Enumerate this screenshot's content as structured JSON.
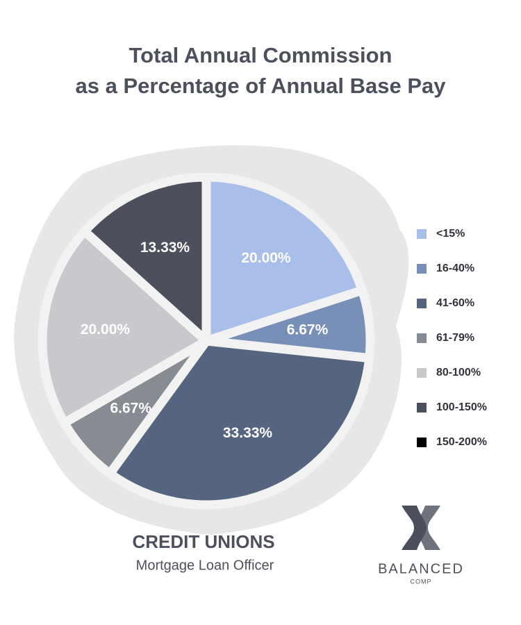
{
  "chart_data": {
    "type": "pie",
    "title": [
      "Total Annual Commission",
      "as a Percentage of Annual Base Pay"
    ],
    "subtitle": [
      "CREDIT UNIONS",
      "Mortgage Loan Officer"
    ],
    "categories": [
      "<15%",
      "16-40%",
      "41-60%",
      "61-79%",
      "80-100%",
      "100-150%",
      "150-200%"
    ],
    "values": [
      20.0,
      6.67,
      33.33,
      6.67,
      20.0,
      13.33,
      0
    ],
    "value_labels": [
      "20.00%",
      "6.67%",
      "33.33%",
      "6.67%",
      "20.00%",
      "13.33%",
      null
    ],
    "colors": [
      "#a9bfe9",
      "#7890b8",
      "#56657f",
      "#878c93",
      "#c8c9cc",
      "#4b505c",
      "#000000"
    ],
    "legend": "right"
  },
  "brand": {
    "name": "BALANCED",
    "sub": "COMP"
  }
}
